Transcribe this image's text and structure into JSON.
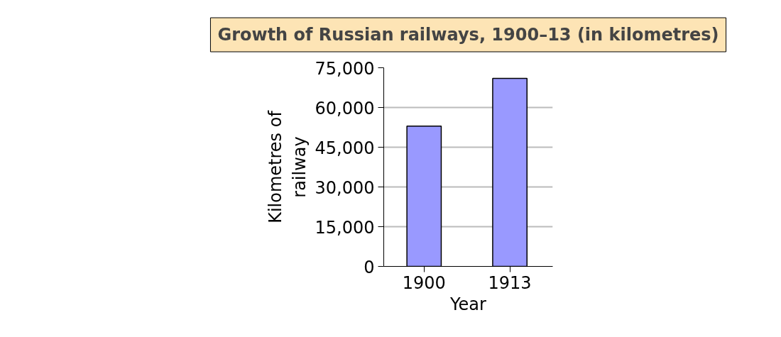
{
  "chart_data": {
    "type": "bar",
    "title": "Growth of Russian railways, 1900–13 (in kilometres)",
    "categories": [
      "1900",
      "1913"
    ],
    "values": [
      53000,
      71000
    ],
    "color": "#9999ff",
    "xlabel": "Year",
    "ylabel": "Kilometres of railway",
    "ylim": [
      0,
      75000
    ],
    "yticks": [
      {
        "value": 0,
        "label": "0"
      },
      {
        "value": 15000,
        "label": "15,000"
      },
      {
        "value": 30000,
        "label": "30,000"
      },
      {
        "value": 45000,
        "label": "45,000"
      },
      {
        "value": 60000,
        "label": "60,000"
      },
      {
        "value": 75000,
        "label": "75,000"
      }
    ],
    "grid": "y"
  }
}
